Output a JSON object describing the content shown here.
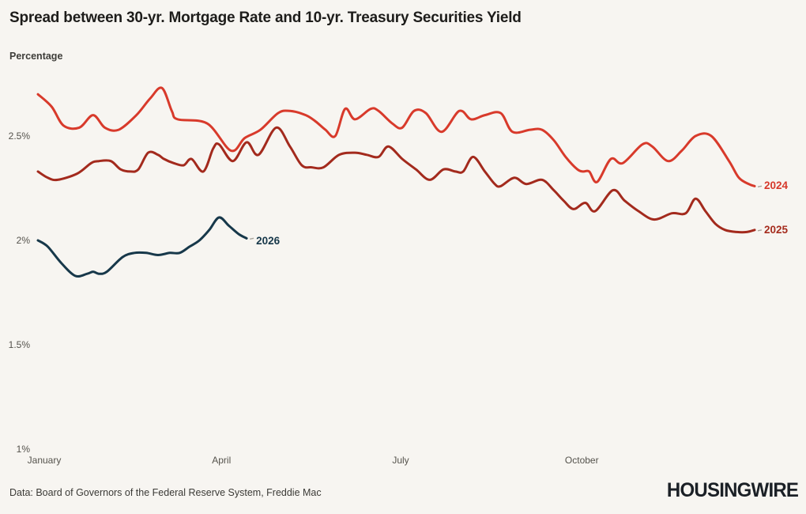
{
  "page": {
    "background": "#f7f5f1",
    "title": "Spread between 30-yr. Mortgage Rate and 10-yr. Treasury Securities Yield",
    "subtitle": "Percentage",
    "source": "Data: Board of Governors of the Federal Reserve System, Freddie Mac",
    "brand": "HOUSINGWIRE"
  },
  "chart_data": {
    "type": "line",
    "title": "Spread between 30-yr. Mortgage Rate and 10-yr. Treasury Securities Yield",
    "ylabel": "Percentage",
    "grid": false,
    "legend": "inline-end-of-line-labels",
    "x_axis": {
      "unit": "day-of-year",
      "range_days": [
        0,
        364
      ],
      "ticks": [
        {
          "day": 0,
          "label": "January"
        },
        {
          "day": 90,
          "label": "April"
        },
        {
          "day": 181,
          "label": "July"
        },
        {
          "day": 273,
          "label": "October"
        }
      ]
    },
    "y_axis": {
      "range": [
        1.0,
        2.8
      ],
      "ticks": [
        {
          "value": 1.0,
          "label": "1%"
        },
        {
          "value": 1.5,
          "label": "1.5%"
        },
        {
          "value": 2.0,
          "label": "2%"
        },
        {
          "value": 2.5,
          "label": "2.5%"
        }
      ]
    },
    "series": [
      {
        "name": "2024",
        "color": "#d83a2b",
        "label_color": "#d6382a",
        "points": [
          [
            0,
            2.7
          ],
          [
            7,
            2.64
          ],
          [
            13,
            2.55
          ],
          [
            21,
            2.54
          ],
          [
            28,
            2.6
          ],
          [
            34,
            2.54
          ],
          [
            41,
            2.53
          ],
          [
            50,
            2.6
          ],
          [
            57,
            2.68
          ],
          [
            63,
            2.73
          ],
          [
            68,
            2.62
          ],
          [
            71,
            2.58
          ],
          [
            86,
            2.56
          ],
          [
            98,
            2.43
          ],
          [
            105,
            2.49
          ],
          [
            113,
            2.53
          ],
          [
            122,
            2.61
          ],
          [
            128,
            2.62
          ],
          [
            136,
            2.6
          ],
          [
            141,
            2.57
          ],
          [
            146,
            2.53
          ],
          [
            151,
            2.5
          ],
          [
            156,
            2.63
          ],
          [
            161,
            2.58
          ],
          [
            169,
            2.63
          ],
          [
            173,
            2.62
          ],
          [
            180,
            2.56
          ],
          [
            185,
            2.54
          ],
          [
            191,
            2.62
          ],
          [
            197,
            2.61
          ],
          [
            205,
            2.52
          ],
          [
            214,
            2.62
          ],
          [
            220,
            2.58
          ],
          [
            227,
            2.6
          ],
          [
            235,
            2.61
          ],
          [
            241,
            2.52
          ],
          [
            250,
            2.53
          ],
          [
            256,
            2.53
          ],
          [
            262,
            2.48
          ],
          [
            268,
            2.4
          ],
          [
            274,
            2.34
          ],
          [
            277,
            2.33
          ],
          [
            280,
            2.33
          ],
          [
            284,
            2.28
          ],
          [
            291,
            2.39
          ],
          [
            297,
            2.37
          ],
          [
            307,
            2.46
          ],
          [
            312,
            2.45
          ],
          [
            320,
            2.38
          ],
          [
            327,
            2.43
          ],
          [
            334,
            2.5
          ],
          [
            342,
            2.5
          ],
          [
            351,
            2.38
          ],
          [
            356,
            2.3
          ],
          [
            361,
            2.27
          ],
          [
            364,
            2.26
          ]
        ]
      },
      {
        "name": "2025",
        "color": "#a32a1d",
        "label_color": "#a52c1e",
        "points": [
          [
            0,
            2.33
          ],
          [
            5,
            2.3
          ],
          [
            10,
            2.29
          ],
          [
            20,
            2.32
          ],
          [
            27,
            2.37
          ],
          [
            31,
            2.38
          ],
          [
            37,
            2.38
          ],
          [
            42,
            2.34
          ],
          [
            47,
            2.33
          ],
          [
            51,
            2.34
          ],
          [
            56,
            2.42
          ],
          [
            61,
            2.41
          ],
          [
            64,
            2.39
          ],
          [
            69,
            2.37
          ],
          [
            74,
            2.36
          ],
          [
            78,
            2.39
          ],
          [
            84,
            2.33
          ],
          [
            89,
            2.44
          ],
          [
            92,
            2.46
          ],
          [
            99,
            2.38
          ],
          [
            106,
            2.47
          ],
          [
            112,
            2.41
          ],
          [
            121,
            2.54
          ],
          [
            128,
            2.45
          ],
          [
            134,
            2.36
          ],
          [
            139,
            2.35
          ],
          [
            145,
            2.35
          ],
          [
            153,
            2.41
          ],
          [
            161,
            2.42
          ],
          [
            167,
            2.41
          ],
          [
            173,
            2.4
          ],
          [
            178,
            2.45
          ],
          [
            185,
            2.39
          ],
          [
            192,
            2.34
          ],
          [
            199,
            2.29
          ],
          [
            206,
            2.34
          ],
          [
            212,
            2.33
          ],
          [
            216,
            2.33
          ],
          [
            221,
            2.4
          ],
          [
            227,
            2.33
          ],
          [
            232,
            2.27
          ],
          [
            235,
            2.26
          ],
          [
            242,
            2.3
          ],
          [
            248,
            2.27
          ],
          [
            256,
            2.29
          ],
          [
            262,
            2.24
          ],
          [
            267,
            2.19
          ],
          [
            272,
            2.15
          ],
          [
            278,
            2.18
          ],
          [
            283,
            2.14
          ],
          [
            292,
            2.24
          ],
          [
            298,
            2.19
          ],
          [
            305,
            2.14
          ],
          [
            313,
            2.1
          ],
          [
            322,
            2.13
          ],
          [
            329,
            2.13
          ],
          [
            334,
            2.2
          ],
          [
            339,
            2.14
          ],
          [
            344,
            2.08
          ],
          [
            349,
            2.05
          ],
          [
            355,
            2.04
          ],
          [
            360,
            2.04
          ],
          [
            364,
            2.05
          ]
        ]
      },
      {
        "name": "2026",
        "color": "#17384a",
        "label_color": "#17384a",
        "points": [
          [
            0,
            2.0
          ],
          [
            5,
            1.97
          ],
          [
            12,
            1.89
          ],
          [
            19,
            1.83
          ],
          [
            25,
            1.84
          ],
          [
            28,
            1.85
          ],
          [
            31,
            1.84
          ],
          [
            35,
            1.85
          ],
          [
            43,
            1.92
          ],
          [
            49,
            1.94
          ],
          [
            55,
            1.94
          ],
          [
            61,
            1.93
          ],
          [
            67,
            1.94
          ],
          [
            72,
            1.94
          ],
          [
            77,
            1.97
          ],
          [
            82,
            2.0
          ],
          [
            87,
            2.05
          ],
          [
            92,
            2.11
          ],
          [
            97,
            2.07
          ],
          [
            102,
            2.03
          ],
          [
            106,
            2.01
          ]
        ]
      }
    ]
  }
}
